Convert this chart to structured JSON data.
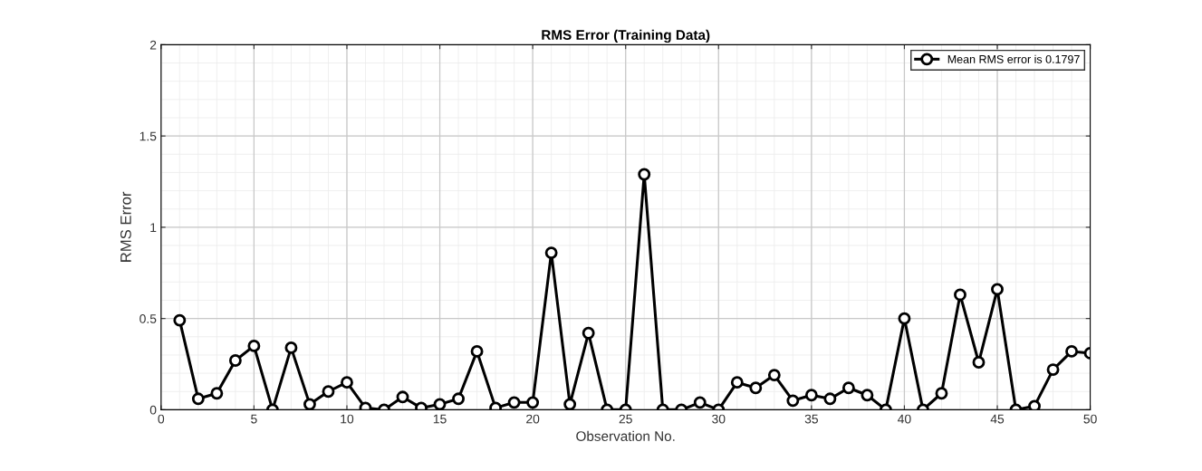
{
  "chart_data": {
    "type": "line",
    "title": "RMS Error (Training Data)",
    "xlabel": "Observation No.",
    "ylabel": "RMS Error",
    "x": [
      1,
      2,
      3,
      4,
      5,
      6,
      7,
      8,
      9,
      10,
      11,
      12,
      13,
      14,
      15,
      16,
      17,
      18,
      19,
      20,
      21,
      22,
      23,
      24,
      25,
      26,
      27,
      28,
      29,
      30,
      31,
      32,
      33,
      34,
      35,
      36,
      37,
      38,
      39,
      40,
      41,
      42,
      43,
      44,
      45,
      46,
      47,
      48,
      49,
      50
    ],
    "series": [
      {
        "name": "Mean RMS error is 0.1797",
        "color": "#000000",
        "values": [
          0.49,
          0.06,
          0.09,
          0.27,
          0.35,
          0.0,
          0.34,
          0.03,
          0.1,
          0.15,
          0.01,
          0.0,
          0.07,
          0.01,
          0.03,
          0.06,
          0.32,
          0.01,
          0.04,
          0.04,
          0.86,
          0.03,
          0.42,
          0.0,
          0.0,
          1.29,
          0.0,
          0.0,
          0.04,
          0.0,
          0.15,
          0.12,
          0.19,
          0.05,
          0.08,
          0.06,
          0.12,
          0.08,
          0.0,
          0.5,
          0.0,
          0.09,
          0.63,
          0.26,
          0.66,
          0.0,
          0.02,
          0.22,
          0.32,
          0.31
        ]
      }
    ],
    "xlim": [
      0,
      50
    ],
    "xticks": [
      0,
      5,
      10,
      15,
      20,
      25,
      30,
      35,
      40,
      45,
      50
    ],
    "ylim": [
      0,
      2
    ],
    "yticks": [
      0,
      0.5,
      1,
      1.5,
      2
    ],
    "grid": true,
    "legend": "top right",
    "marker": "circle",
    "line_style": "solid"
  }
}
